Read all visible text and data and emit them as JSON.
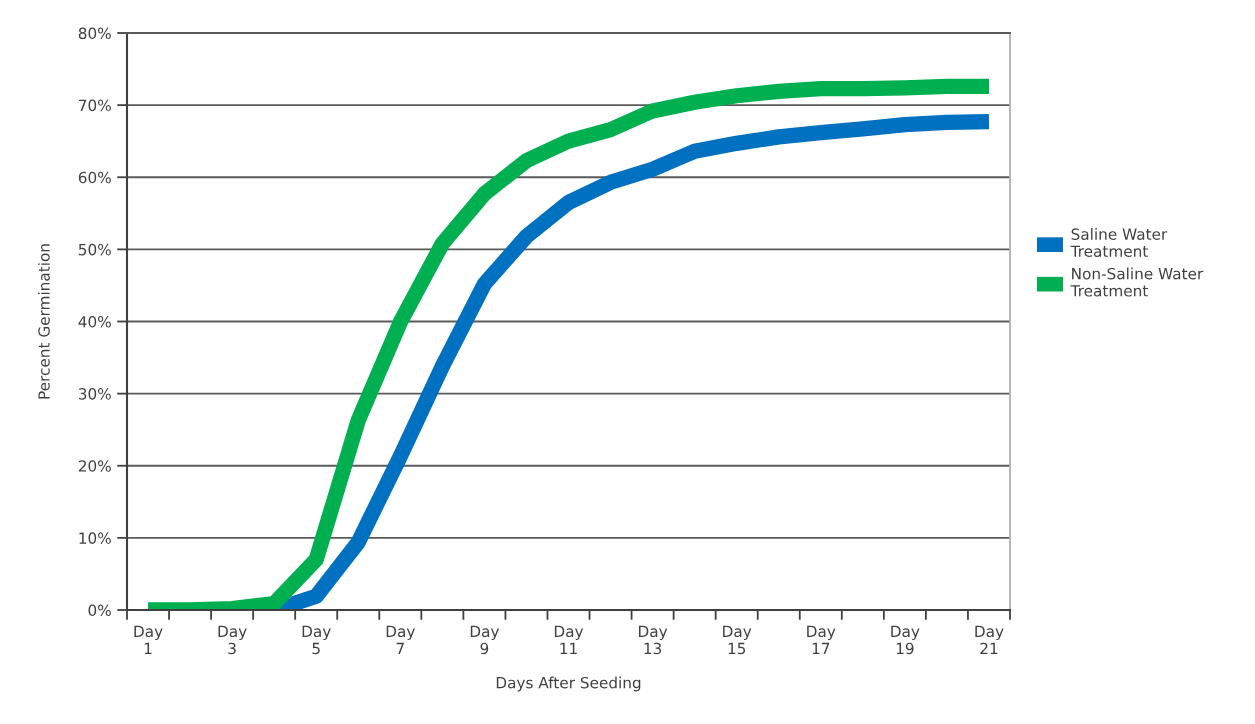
{
  "chart_data": {
    "type": "line",
    "xlabel": "Days After Seeding",
    "ylabel": "Percent Germination",
    "categories": [
      "Day\n1",
      null,
      "Day\n3",
      null,
      "Day\n5",
      null,
      "Day\n7",
      null,
      "Day\n9",
      null,
      "Day\n11",
      null,
      "Day\n13",
      null,
      "Day\n15",
      null,
      "Day\n17",
      null,
      "Day\n19",
      null,
      "Day\n21"
    ],
    "series": [
      {
        "name": "Saline Water\nTreatment",
        "color": "#0070c0",
        "values": [
          null,
          null,
          null,
          0,
          1.9,
          9.4,
          21.3,
          33.8,
          45.2,
          51.8,
          56.5,
          59.3,
          61.1,
          63.6,
          64.7,
          65.6,
          66.2,
          66.7,
          67.3,
          67.6,
          67.7
        ]
      },
      {
        "name": "Non-Saline Water\nTreatment",
        "color": "#00b050",
        "values": [
          0,
          0,
          0.2,
          0.9,
          7.0,
          26.3,
          39.9,
          50.8,
          57.7,
          62.3,
          65.0,
          66.6,
          69.2,
          70.4,
          71.3,
          71.9,
          72.3,
          72.3,
          72.4,
          72.6,
          72.6
        ]
      }
    ],
    "ylim": [
      0,
      80
    ],
    "yticks": [
      {
        "value": 0,
        "label": "0%"
      },
      {
        "value": 10,
        "label": "10%"
      },
      {
        "value": 20,
        "label": "20%"
      },
      {
        "value": 30,
        "label": "30%"
      },
      {
        "value": 40,
        "label": "40%"
      },
      {
        "value": 50,
        "label": "50%"
      },
      {
        "value": 60,
        "label": "60%"
      },
      {
        "value": 70,
        "label": "70%"
      },
      {
        "value": 80,
        "label": "80%"
      }
    ],
    "grid": "y",
    "legend": "right",
    "line_style": "solid"
  }
}
